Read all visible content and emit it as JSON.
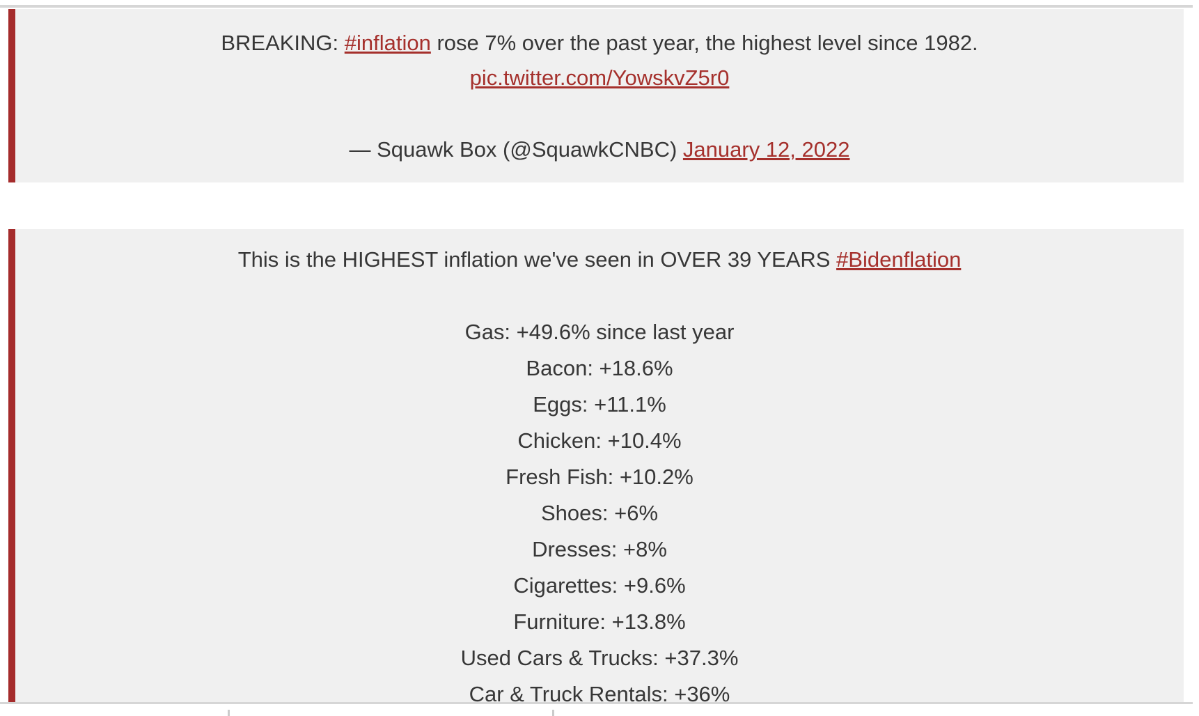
{
  "page": {
    "background_color": "#ffffff",
    "quote_background_color": "#f0f0f0",
    "accent_border_color": "#a52c2c",
    "link_color": "#a5302c",
    "text_color": "#373737",
    "divider_color": "#d6d6d6"
  },
  "tweet1": {
    "text_before_hashtag": "BREAKING: ",
    "hashtag_link": "#inflation",
    "text_after_hashtag": " rose 7% over the past year, the highest level since 1982.",
    "pic_link": "pic.twitter.com/YowskvZ5r0",
    "attribution_prefix": "— Squawk Box (@SquawkCNBC) ",
    "date_link": "January 12, 2022"
  },
  "tweet2": {
    "text_before_hashtag": "This is the HIGHEST inflation we've seen in OVER 39 YEARS ",
    "hashtag_link": "#Bidenflation",
    "lines": [
      "Gas: +49.6% since last year",
      "Bacon: +18.6%",
      "Eggs: +11.1%",
      "Chicken: +10.4%",
      "Fresh Fish: +10.2%",
      "Shoes: +6%",
      "Dresses: +8%",
      "Cigarettes: +9.6%",
      "Furniture: +13.8%",
      "Used Cars & Trucks: +37.3%",
      "Car & Truck Rentals: +36%"
    ]
  }
}
